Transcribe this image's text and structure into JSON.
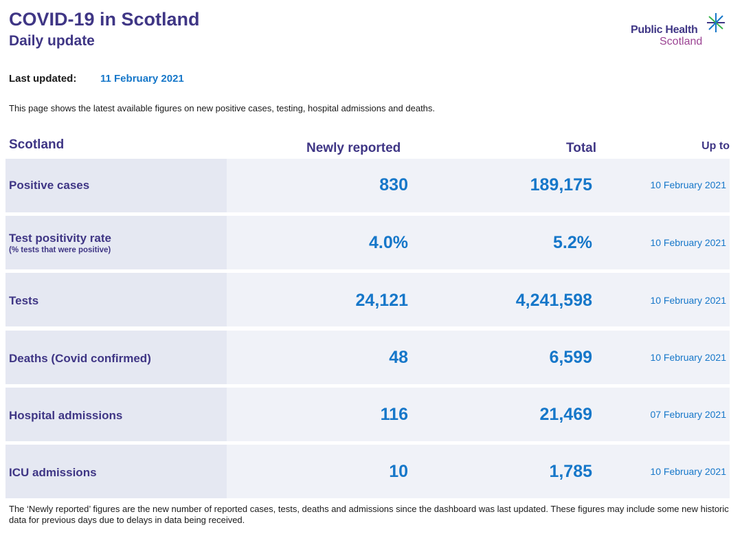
{
  "header": {
    "title": "COVID-19 in Scotland",
    "subtitle": "Daily update",
    "logo": {
      "line1": "Public Health",
      "line2": "Scotland",
      "icon": "star-burst-icon"
    }
  },
  "updated": {
    "label": "Last updated:",
    "value": "11 February 2021"
  },
  "intro": "This page shows the latest available figures on new positive cases, testing, hospital admissions and deaths.",
  "table": {
    "headers": {
      "region": "Scotland",
      "newly": "Newly reported",
      "total": "Total",
      "upto": "Up to"
    },
    "rows": [
      {
        "label": "Positive cases",
        "sub": "",
        "newly": "830",
        "total": "189,175",
        "upto": "10 February 2021"
      },
      {
        "label": "Test positivity rate",
        "sub": "(% tests that were positive)",
        "newly": "4.0%",
        "total": "5.2%",
        "upto": "10 February 2021"
      },
      {
        "label": "Tests",
        "sub": "",
        "newly": "24,121",
        "total": "4,241,598",
        "upto": "10 February 2021"
      },
      {
        "label": "Deaths (Covid confirmed)",
        "sub": "",
        "newly": "48",
        "total": "6,599",
        "upto": "10 February 2021"
      },
      {
        "label": "Hospital admissions",
        "sub": "",
        "newly": "116",
        "total": "21,469",
        "upto": "07 February 2021"
      },
      {
        "label": "ICU admissions",
        "sub": "",
        "newly": "10",
        "total": "1,785",
        "upto": "10 February 2021"
      }
    ]
  },
  "footnote": "The ‘Newly reported’ figures are the new number of reported cases, tests, deaths and admissions since the dashboard was last updated. These figures may include some new historic data for previous days due to delays in data being received.",
  "colors": {
    "brand_purple": "#3f3685",
    "accent_blue": "#1677c9",
    "logo_magenta": "#9b4393",
    "logo_green": "#39b54a"
  }
}
